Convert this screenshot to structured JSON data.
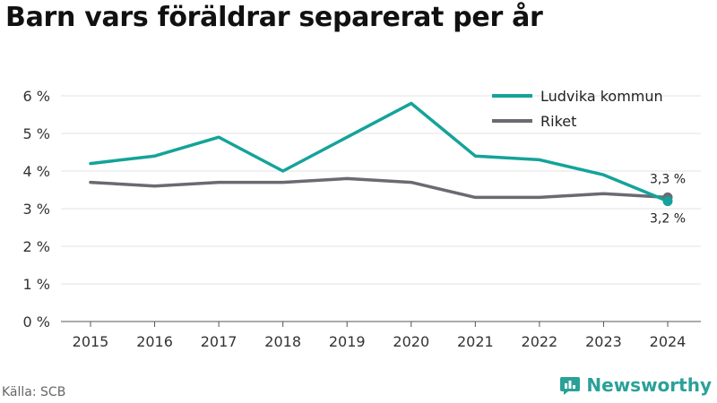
{
  "title": "Barn vars föräldrar separerat per år",
  "source": "Källa: SCB",
  "brand": "Newsworthy",
  "chart_data": {
    "type": "line",
    "x": [
      "2015",
      "2016",
      "2017",
      "2018",
      "2019",
      "2020",
      "2021",
      "2022",
      "2023",
      "2024"
    ],
    "series": [
      {
        "name": "Ludvika kommun",
        "color": "#14a39a",
        "values": [
          4.2,
          4.4,
          4.9,
          4.0,
          4.9,
          5.8,
          4.4,
          4.3,
          3.9,
          3.2
        ],
        "end_label": "3,2 %"
      },
      {
        "name": "Riket",
        "color": "#6b6a72",
        "values": [
          3.7,
          3.6,
          3.7,
          3.7,
          3.8,
          3.7,
          3.3,
          3.3,
          3.4,
          3.3
        ],
        "end_label": "3,3 %"
      }
    ],
    "ylim": [
      0,
      6
    ],
    "yticks": [
      0,
      1,
      2,
      3,
      4,
      5,
      6
    ],
    "ytick_labels": [
      "0 %",
      "1 %",
      "2 %",
      "3 %",
      "4 %",
      "5 %",
      "6 %"
    ],
    "xlabel": "",
    "ylabel": "",
    "grid": true,
    "legend_position": "top-right"
  }
}
